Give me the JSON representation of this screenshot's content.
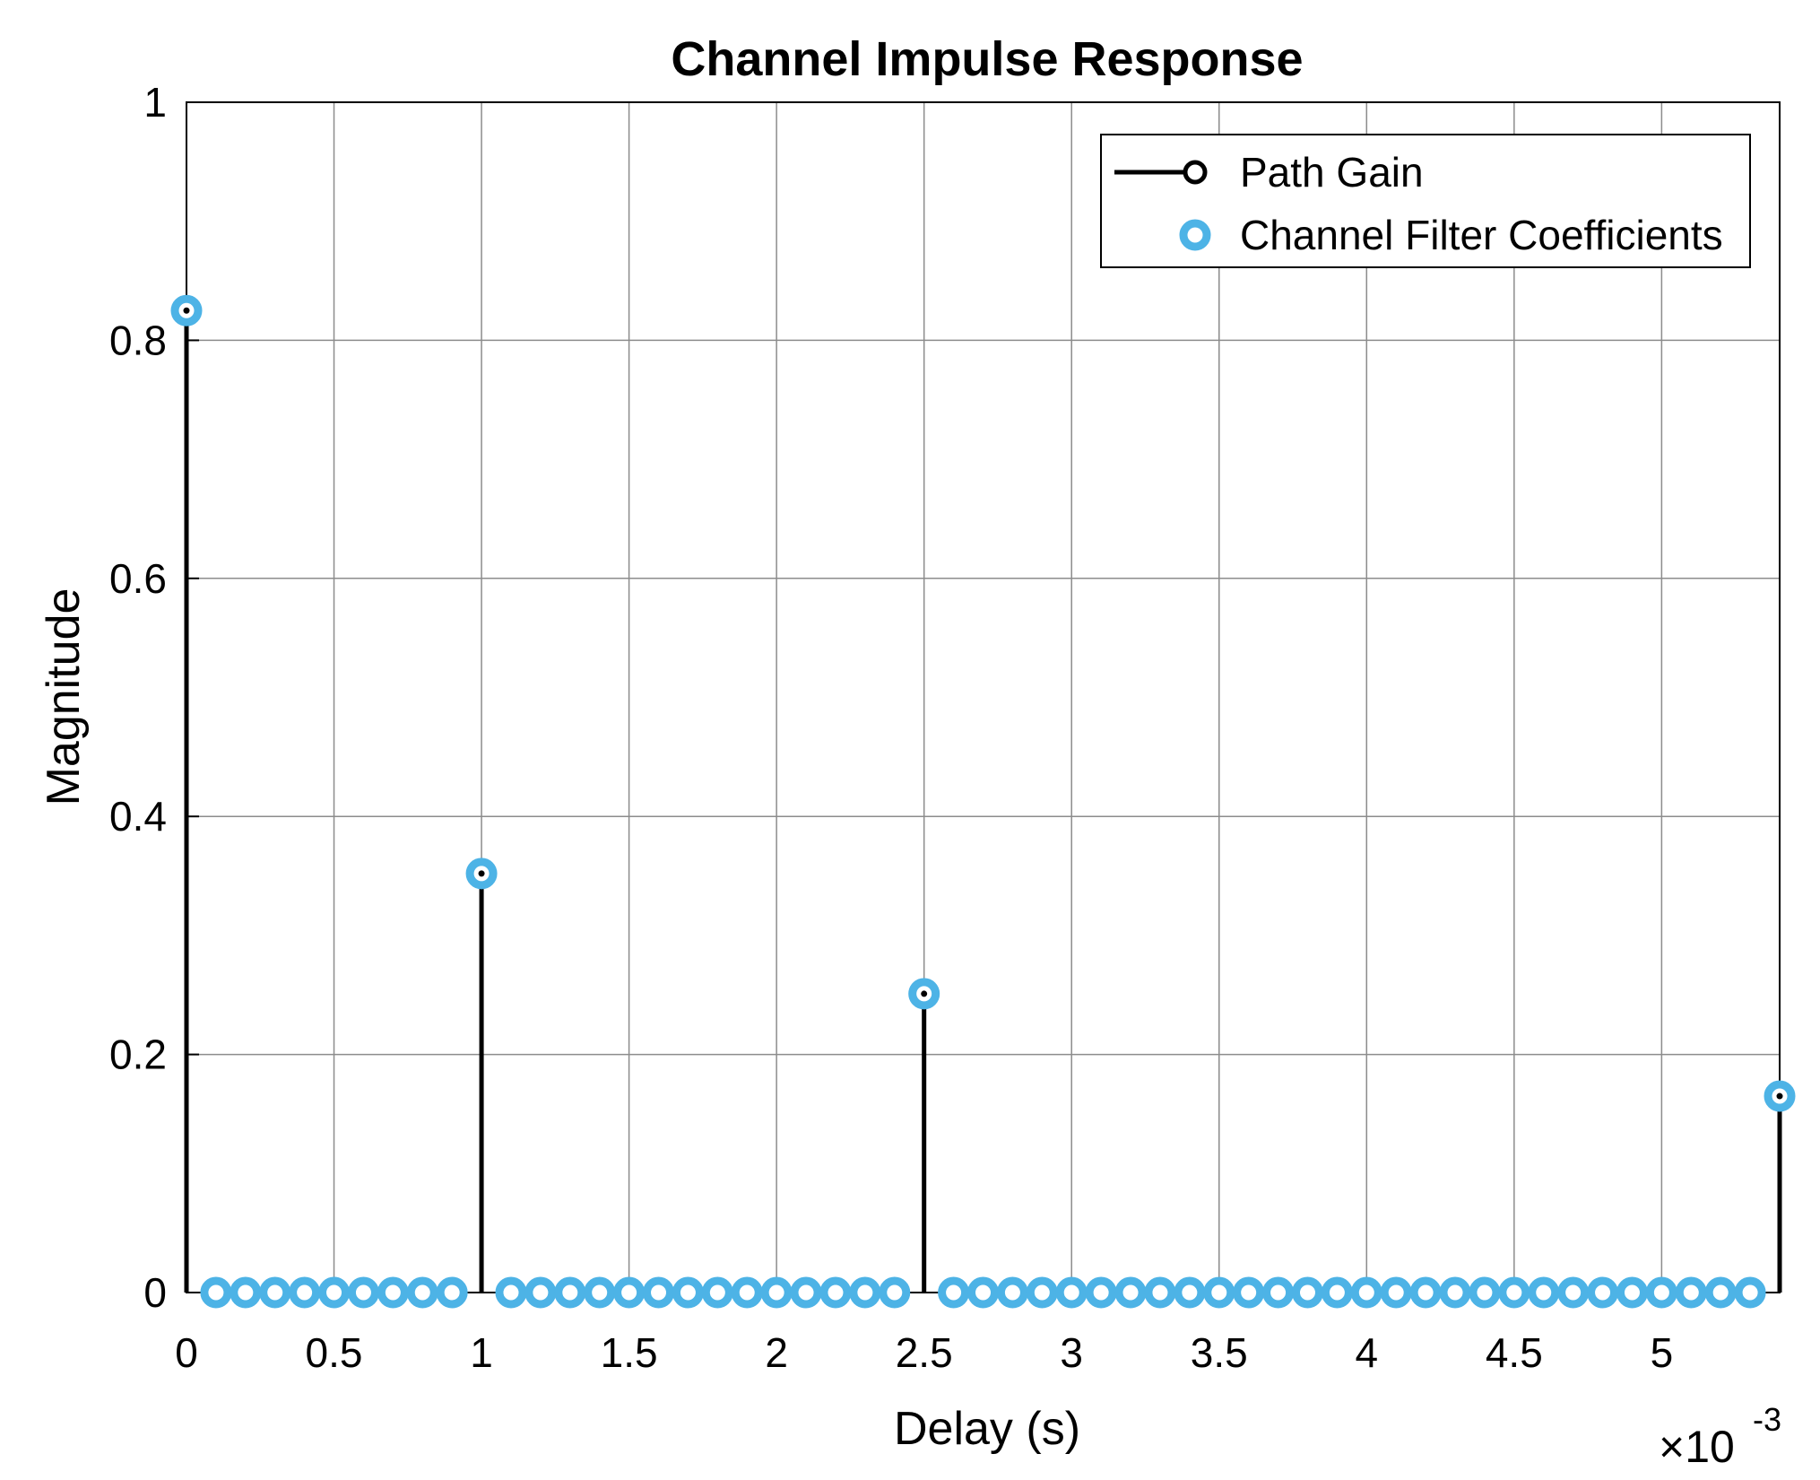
{
  "chart_data": {
    "type": "stem",
    "title": "Channel Impulse Response",
    "xlabel": "Delay (s)",
    "ylabel": "Magnitude",
    "x_multiplier": {
      "prefix": "×10",
      "exponent": "-3"
    },
    "xlim": [
      0,
      5.4
    ],
    "ylim": [
      0,
      1
    ],
    "x_ticks": [
      0,
      0.5,
      1,
      1.5,
      2,
      2.5,
      3,
      3.5,
      4,
      4.5,
      5
    ],
    "x_tick_labels": [
      "0",
      "0.5",
      "1",
      "1.5",
      "2",
      "2.5",
      "3",
      "3.5",
      "4",
      "4.5",
      "5"
    ],
    "y_ticks": [
      0,
      0.2,
      0.4,
      0.6,
      0.8,
      1
    ],
    "y_tick_labels": [
      "0",
      "0.2",
      "0.4",
      "0.6",
      "0.8",
      "1"
    ],
    "grid": true,
    "legend_position": "top-right",
    "series": [
      {
        "name": "Path Gain",
        "style": "stem",
        "color": "#000000",
        "x": [
          0,
          1,
          2.5,
          5.4
        ],
        "y": [
          0.825,
          0.352,
          0.251,
          0.165
        ]
      },
      {
        "name": "Channel Filter Coefficients",
        "style": "markers",
        "color": "#4db3e6",
        "x": [
          0,
          0.1,
          0.2,
          0.3,
          0.4,
          0.5,
          0.6,
          0.7,
          0.8,
          0.9,
          1.0,
          1.1,
          1.2,
          1.3,
          1.4,
          1.5,
          1.6,
          1.7,
          1.8,
          1.9,
          2.0,
          2.1,
          2.2,
          2.3,
          2.4,
          2.5,
          2.6,
          2.7,
          2.8,
          2.9,
          3.0,
          3.1,
          3.2,
          3.3,
          3.4,
          3.5,
          3.6,
          3.7,
          3.8,
          3.9,
          4.0,
          4.1,
          4.2,
          4.3,
          4.4,
          4.5,
          4.6,
          4.7,
          4.8,
          4.9,
          5.0,
          5.1,
          5.2,
          5.3,
          5.4
        ],
        "y": [
          0.825,
          0,
          0,
          0,
          0,
          0,
          0,
          0,
          0,
          0,
          0.352,
          0,
          0,
          0,
          0,
          0,
          0,
          0,
          0,
          0,
          0,
          0,
          0,
          0,
          0,
          0.251,
          0,
          0,
          0,
          0,
          0,
          0,
          0,
          0,
          0,
          0,
          0,
          0,
          0,
          0,
          0,
          0,
          0,
          0,
          0,
          0,
          0,
          0,
          0,
          0,
          0,
          0,
          0,
          0,
          0.165
        ]
      }
    ]
  }
}
